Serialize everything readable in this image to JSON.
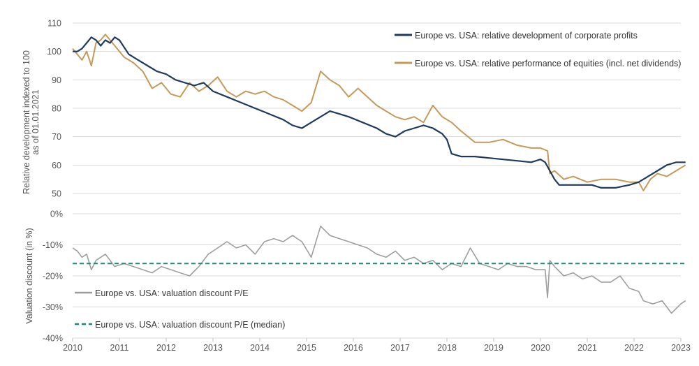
{
  "chart_data": [
    {
      "type": "line",
      "ylabel": [
        "Relative development indexed to 100",
        "as of 01.01.2021"
      ],
      "ylim": [
        50,
        110
      ],
      "yticks": [
        "50",
        "60",
        "70",
        "80",
        "90",
        "100",
        "110"
      ],
      "grid": true,
      "legend_placement": "top-right",
      "series": [
        {
          "name": "Europe vs. USA: relative development of corporate profits",
          "color": "#1f3a5f",
          "x": [
            2010.0,
            2010.1,
            2010.2,
            2010.3,
            2010.4,
            2010.5,
            2010.6,
            2010.7,
            2010.8,
            2010.9,
            2011.0,
            2011.2,
            2011.4,
            2011.6,
            2011.8,
            2012.0,
            2012.2,
            2012.4,
            2012.6,
            2012.8,
            2013.0,
            2013.3,
            2013.6,
            2013.9,
            2014.2,
            2014.5,
            2014.7,
            2014.9,
            2015.1,
            2015.3,
            2015.5,
            2015.7,
            2015.9,
            2016.2,
            2016.5,
            2016.7,
            2016.9,
            2017.1,
            2017.3,
            2017.5,
            2017.7,
            2017.9,
            2018.0,
            2018.1,
            2018.3,
            2018.6,
            2018.9,
            2019.2,
            2019.5,
            2019.8,
            2020.0,
            2020.1,
            2020.2,
            2020.3,
            2020.4,
            2020.6,
            2020.9,
            2021.1,
            2021.3,
            2021.6,
            2021.9,
            2022.1,
            2022.3,
            2022.5,
            2022.7,
            2022.9,
            2023.1
          ],
          "values": [
            100,
            100,
            101,
            103,
            105,
            104,
            102,
            104,
            103,
            105,
            104,
            99,
            97,
            95,
            93,
            92,
            90,
            89,
            88,
            89,
            86,
            84,
            82,
            80,
            78,
            76,
            74,
            73,
            75,
            77,
            79,
            78,
            77,
            75,
            73,
            71,
            70,
            72,
            73,
            74,
            73,
            71,
            69,
            64,
            63,
            63,
            62.5,
            62,
            61.5,
            61,
            62,
            61,
            58,
            55,
            53,
            53,
            53,
            53,
            52,
            52,
            53,
            54,
            56,
            58,
            60,
            61,
            61
          ]
        },
        {
          "name": "Europe vs. USA: relative performance of equities (incl. net dividends)",
          "color": "#c49a5a",
          "x": [
            2010.0,
            2010.1,
            2010.2,
            2010.3,
            2010.4,
            2010.5,
            2010.6,
            2010.7,
            2010.9,
            2011.1,
            2011.3,
            2011.5,
            2011.7,
            2011.9,
            2012.1,
            2012.3,
            2012.5,
            2012.7,
            2012.9,
            2013.1,
            2013.3,
            2013.5,
            2013.7,
            2013.9,
            2014.1,
            2014.3,
            2014.5,
            2014.7,
            2014.9,
            2015.1,
            2015.3,
            2015.5,
            2015.7,
            2015.9,
            2016.1,
            2016.3,
            2016.5,
            2016.7,
            2016.9,
            2017.1,
            2017.3,
            2017.5,
            2017.7,
            2017.9,
            2018.1,
            2018.3,
            2018.6,
            2018.9,
            2019.2,
            2019.5,
            2019.8,
            2020.0,
            2020.15,
            2020.2,
            2020.3,
            2020.5,
            2020.7,
            2021.0,
            2021.3,
            2021.6,
            2021.9,
            2022.1,
            2022.2,
            2022.35,
            2022.5,
            2022.7,
            2022.9,
            2023.1
          ],
          "values": [
            101,
            99,
            97,
            100,
            95,
            103,
            104,
            106,
            102,
            98,
            96,
            93,
            87,
            89,
            85,
            84,
            89,
            86,
            88,
            91,
            86,
            84,
            86,
            85,
            86,
            84,
            83,
            81,
            79,
            82,
            93,
            90,
            88,
            84,
            87,
            84,
            81,
            79,
            77,
            76,
            77,
            75,
            81,
            77,
            75,
            72,
            68,
            68,
            69,
            67,
            66,
            66,
            65,
            57,
            58,
            55,
            56,
            54,
            55,
            55,
            54,
            54,
            51,
            55,
            57,
            56,
            58,
            60
          ]
        }
      ]
    },
    {
      "type": "line",
      "ylabel": "Valuation discount (in %)",
      "ylim": [
        -40,
        0
      ],
      "yticks": [
        "0%",
        "-10%",
        "-20%",
        "-30%",
        "-40%"
      ],
      "xticks": [
        "2010",
        "2011",
        "2012",
        "2013",
        "2014",
        "2015",
        "2016",
        "2017",
        "2018",
        "2019",
        "2020",
        "2021",
        "2022",
        "2023"
      ],
      "xlim": [
        2010,
        2023
      ],
      "legend_placement": "bottom-left",
      "series": [
        {
          "name": "Europe vs. USA: valuation discount P/E",
          "color": "#9e9e9e",
          "style": "solid",
          "x": [
            2010.0,
            2010.1,
            2010.2,
            2010.3,
            2010.4,
            2010.5,
            2010.7,
            2010.9,
            2011.1,
            2011.3,
            2011.5,
            2011.7,
            2011.9,
            2012.1,
            2012.3,
            2012.5,
            2012.7,
            2012.9,
            2013.1,
            2013.3,
            2013.5,
            2013.7,
            2013.9,
            2014.1,
            2014.3,
            2014.5,
            2014.7,
            2014.9,
            2015.1,
            2015.3,
            2015.5,
            2015.7,
            2015.9,
            2016.1,
            2016.3,
            2016.5,
            2016.7,
            2016.9,
            2017.1,
            2017.3,
            2017.5,
            2017.7,
            2017.9,
            2018.1,
            2018.3,
            2018.5,
            2018.7,
            2018.9,
            2019.1,
            2019.3,
            2019.5,
            2019.7,
            2019.9,
            2020.1,
            2020.15,
            2020.2,
            2020.3,
            2020.5,
            2020.7,
            2020.9,
            2021.1,
            2021.3,
            2021.5,
            2021.7,
            2021.9,
            2022.1,
            2022.2,
            2022.4,
            2022.6,
            2022.8,
            2023.0,
            2023.1
          ],
          "values": [
            -11,
            -12,
            -14,
            -13,
            -18,
            -15,
            -13,
            -17,
            -16,
            -17,
            -18,
            -19,
            -17,
            -18,
            -19,
            -20,
            -17,
            -13,
            -11,
            -9,
            -11,
            -10,
            -13,
            -9,
            -8,
            -9,
            -7,
            -9,
            -14,
            -4,
            -7,
            -8,
            -9,
            -10,
            -11,
            -13,
            -14,
            -12,
            -15,
            -14,
            -16,
            -15,
            -18,
            -16,
            -17,
            -11,
            -16,
            -17,
            -18,
            -16,
            -17,
            -17,
            -18,
            -18,
            -27,
            -15,
            -17,
            -20,
            -19,
            -21,
            -20,
            -22,
            -22,
            -20,
            -24,
            -25,
            -28,
            -29,
            -28,
            -32,
            -29,
            -28
          ]
        },
        {
          "name": "Europe vs. USA: valuation discount P/E (median)",
          "color": "#1a8a7a",
          "style": "dashed",
          "x": [
            2010,
            2023.1
          ],
          "values": [
            -16,
            -16
          ]
        }
      ]
    }
  ]
}
